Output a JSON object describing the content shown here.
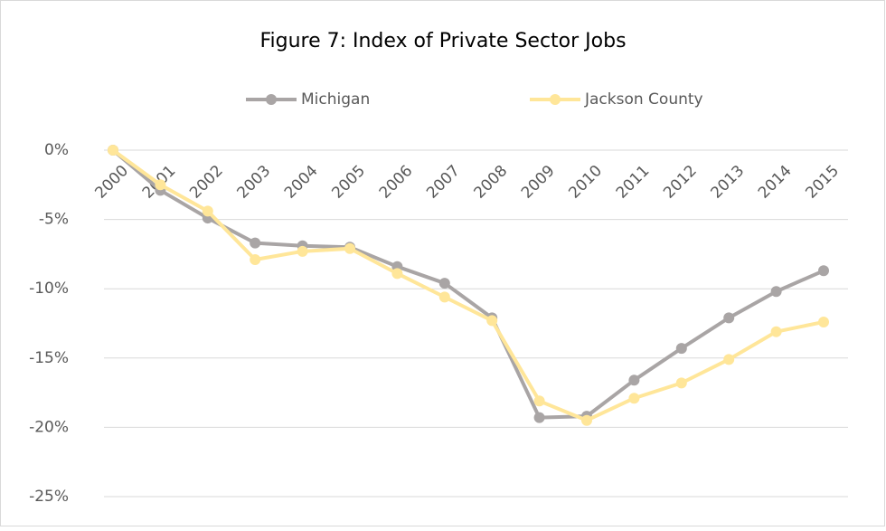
{
  "chart_data": {
    "type": "line",
    "title": "Figure 7: Index of Private Sector Jobs",
    "categories": [
      "2000",
      "2001",
      "2002",
      "2003",
      "2004",
      "2005",
      "2006",
      "2007",
      "2008",
      "2009",
      "2010",
      "2011",
      "2012",
      "2013",
      "2014",
      "2015"
    ],
    "series": [
      {
        "name": "Michigan",
        "color": "#a9a5a5",
        "values": [
          0,
          -2.9,
          -4.9,
          -6.7,
          -6.9,
          -7.0,
          -8.4,
          -9.6,
          -12.1,
          -19.3,
          -19.2,
          -16.6,
          -14.3,
          -12.1,
          -10.2,
          -8.7
        ]
      },
      {
        "name": "Jackson County",
        "color": "#ffe699",
        "values": [
          0,
          -2.5,
          -4.4,
          -7.9,
          -7.3,
          -7.1,
          -8.9,
          -10.6,
          -12.3,
          -18.1,
          -19.5,
          -17.9,
          -16.8,
          -15.1,
          -13.1,
          -12.4
        ]
      }
    ],
    "ylim": [
      -25,
      0
    ],
    "yticks": [
      {
        "value": 0,
        "label": "0%"
      },
      {
        "value": -5,
        "label": "-5%"
      },
      {
        "value": -10,
        "label": "-10%"
      },
      {
        "value": -15,
        "label": "-15%"
      },
      {
        "value": -20,
        "label": "-20%"
      },
      {
        "value": -25,
        "label": "-25%"
      }
    ],
    "grid": true,
    "legend": "top"
  }
}
